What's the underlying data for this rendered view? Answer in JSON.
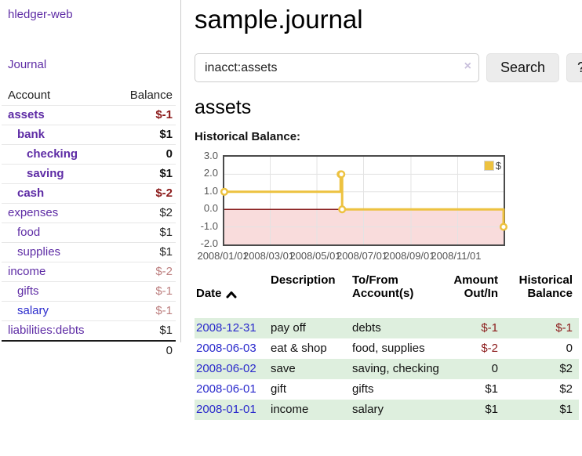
{
  "app": {
    "brand": "hledger-web"
  },
  "colors": {
    "link_purple": "#5e2ca5",
    "link_blue": "#2a2acc",
    "negative_dark": "#8b1a1a",
    "negative_light": "#bd7f7f",
    "row_green": "#deefde",
    "series_yellow": "#edc240",
    "zero_line_red": "#8b2020",
    "negative_region_pink": "#f9dcdc"
  },
  "sidebar": {
    "journal_label": "Journal",
    "table": {
      "headers": {
        "account": "Account",
        "balance": "Balance"
      },
      "rows": [
        {
          "account": "assets",
          "indent": 1,
          "bold": true,
          "blue": false,
          "balance": "$-1",
          "balance_style": "negbold"
        },
        {
          "account": "bank",
          "indent": 2,
          "bold": true,
          "blue": false,
          "balance": "$1",
          "balance_style": "bold"
        },
        {
          "account": "checking",
          "indent": 3,
          "bold": true,
          "blue": false,
          "balance": "0",
          "balance_style": "bold"
        },
        {
          "account": "saving",
          "indent": 3,
          "bold": true,
          "blue": false,
          "balance": "$1",
          "balance_style": "bold"
        },
        {
          "account": "cash",
          "indent": 2,
          "bold": true,
          "blue": false,
          "balance": "$-2",
          "balance_style": "negbold"
        },
        {
          "account": "expenses",
          "indent": 1,
          "bold": false,
          "blue": false,
          "balance": "$2",
          "balance_style": "plain"
        },
        {
          "account": "food",
          "indent": 2,
          "bold": false,
          "blue": false,
          "balance": "$1",
          "balance_style": "plain"
        },
        {
          "account": "supplies",
          "indent": 2,
          "bold": false,
          "blue": false,
          "balance": "$1",
          "balance_style": "plain"
        },
        {
          "account": "income",
          "indent": 1,
          "bold": false,
          "blue": false,
          "balance": "$-2",
          "balance_style": "neglight"
        },
        {
          "account": "gifts",
          "indent": 2,
          "bold": false,
          "blue": false,
          "balance": "$-1",
          "balance_style": "neglight"
        },
        {
          "account": "salary",
          "indent": 2,
          "bold": false,
          "blue": true,
          "balance": "$-1",
          "balance_style": "neglight"
        },
        {
          "account": "liabilities:debts",
          "indent": 1,
          "bold": false,
          "blue": false,
          "balance": "$1",
          "balance_style": "plain"
        }
      ],
      "total": "0"
    }
  },
  "main": {
    "title": "sample.journal",
    "search": {
      "value": "inacct:assets",
      "clear": "×",
      "button_label": "Search",
      "help_label": "?"
    },
    "section_title": "assets",
    "chart_label": "Historical Balance:"
  },
  "chart_data": {
    "type": "line",
    "title": "Historical Balance:",
    "step": true,
    "legend_position": "top-right",
    "grid": true,
    "xlim_days": [
      0,
      365
    ],
    "ylim": [
      -2,
      3
    ],
    "y_ticks": [
      {
        "label": "3.0",
        "value": 3
      },
      {
        "label": "2.0",
        "value": 2
      },
      {
        "label": "1.0",
        "value": 1
      },
      {
        "label": "0.0",
        "value": 0
      },
      {
        "label": "-1.0",
        "value": -1
      },
      {
        "label": "-2.0",
        "value": -2
      }
    ],
    "x_ticks": [
      {
        "label": "2008/01/01",
        "day": 0
      },
      {
        "label": "2008/03/01",
        "day": 60
      },
      {
        "label": "2008/05/01",
        "day": 121
      },
      {
        "label": "2008/07/01",
        "day": 182
      },
      {
        "label": "2008/09/01",
        "day": 244
      },
      {
        "label": "2008/11/01",
        "day": 305
      }
    ],
    "series": [
      {
        "name": "$",
        "color": "#edc240",
        "points": [
          {
            "date": "2008-01-01",
            "day": 0,
            "value": 1
          },
          {
            "date": "2008-06-01",
            "day": 152,
            "value": 2
          },
          {
            "date": "2008-06-02",
            "day": 153,
            "value": 2
          },
          {
            "date": "2008-06-03",
            "day": 154,
            "value": 0
          },
          {
            "date": "2008-12-31",
            "day": 365,
            "value": -1
          }
        ]
      }
    ],
    "negative_region": {
      "from": 0,
      "to": -2,
      "fill": "#f9dcdc",
      "zero_line": "#8b2020"
    }
  },
  "register": {
    "headers": {
      "date": "Date",
      "description": "Description",
      "accounts": "To/From\nAccount(s)",
      "amount": "Amount\nOut/In",
      "balance": "Historical\nBalance"
    },
    "rows": [
      {
        "date": "2008-12-31",
        "description": "pay off",
        "accounts": "debts",
        "amount": "$-1",
        "balance": "$-1",
        "green": true
      },
      {
        "date": "2008-06-03",
        "description": "eat & shop",
        "accounts": "food, supplies",
        "amount": "$-2",
        "balance": "0",
        "green": false
      },
      {
        "date": "2008-06-02",
        "description": "save",
        "accounts": "saving, checking",
        "amount": "0",
        "balance": "$2",
        "green": true
      },
      {
        "date": "2008-06-01",
        "description": "gift",
        "accounts": "gifts",
        "amount": "$1",
        "balance": "$2",
        "green": false
      },
      {
        "date": "2008-01-01",
        "description": "income",
        "accounts": "salary",
        "amount": "$1",
        "balance": "$1",
        "green": true
      }
    ]
  }
}
